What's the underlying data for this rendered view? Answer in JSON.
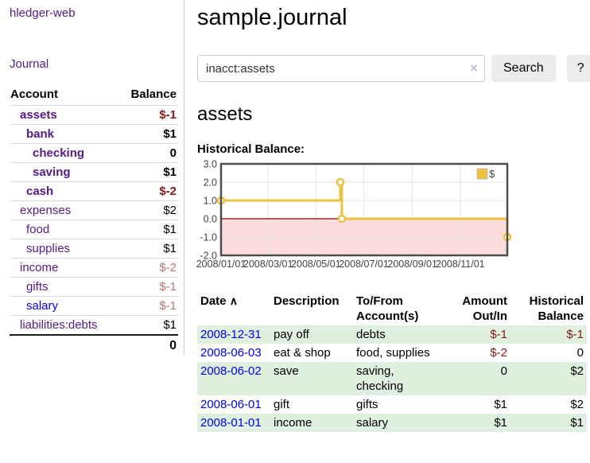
{
  "app": {
    "brand": "hledger-web",
    "nav_journal": "Journal"
  },
  "colors": {
    "purple_link": "#551a8b",
    "blue_link": "#0000ee",
    "negative_strong": "#8b1717",
    "negative_soft": "#bd7575",
    "stripe_green": "#dff0df",
    "series_yellow": "#edc240",
    "negative_region_pink": "#fcdcdc",
    "zero_line_red": "#8b0000",
    "chart_border_gray": "#4d4d4d"
  },
  "sidebar": {
    "table": {
      "col_account": "Account",
      "col_balance": "Balance"
    },
    "accounts": [
      {
        "name": "assets",
        "indent": 1,
        "bold": true,
        "balance": "$-1",
        "negative": "strong"
      },
      {
        "name": "bank",
        "indent": 2,
        "bold": true,
        "balance": "$1"
      },
      {
        "name": "checking",
        "indent": 3,
        "bold": true,
        "balance": "0"
      },
      {
        "name": "saving",
        "indent": 3,
        "bold": true,
        "balance": "$1"
      },
      {
        "name": "cash",
        "indent": 2,
        "bold": true,
        "balance": "$-2",
        "negative": "strong"
      },
      {
        "name": "expenses",
        "indent": 1,
        "bold": false,
        "balance": "$2"
      },
      {
        "name": "food",
        "indent": 2,
        "bold": false,
        "balance": "$1"
      },
      {
        "name": "supplies",
        "indent": 2,
        "bold": false,
        "balance": "$1"
      },
      {
        "name": "income",
        "indent": 1,
        "bold": false,
        "balance": "$-2",
        "negative": "soft"
      },
      {
        "name": "gifts",
        "indent": 2,
        "bold": false,
        "balance": "$-1",
        "negative": "soft"
      },
      {
        "name": "salary",
        "indent": 2,
        "bold": false,
        "balance": "$-1",
        "negative": "soft",
        "link_color": "blue"
      },
      {
        "name": "liabilities:debts",
        "indent": 1,
        "bold": false,
        "balance": "$1"
      }
    ],
    "total": "0"
  },
  "header": {
    "title": "sample.journal"
  },
  "search": {
    "value": "inacct:assets",
    "clear_icon": "×",
    "button": "Search",
    "help_button": "?"
  },
  "main": {
    "account_heading": "assets",
    "chart_label": "Historical Balance:"
  },
  "chart_data": {
    "type": "line",
    "title": "Historical Balance:",
    "step": true,
    "grid": true,
    "legend_position": "top-right",
    "legend": [
      {
        "label": "$"
      }
    ],
    "ylim": [
      -2,
      3
    ],
    "yticks": [
      {
        "value": 3,
        "label": "3.0"
      },
      {
        "value": 2,
        "label": "2.0"
      },
      {
        "value": 1,
        "label": "1.0"
      },
      {
        "value": 0,
        "label": "0.0"
      },
      {
        "value": -1,
        "label": "-1.0"
      },
      {
        "value": -2,
        "label": "-2.0"
      }
    ],
    "x_range": [
      0,
      365
    ],
    "xticks": [
      {
        "day": 0,
        "label": "2008/01/01"
      },
      {
        "day": 60,
        "label": "2008/03/01"
      },
      {
        "day": 121,
        "label": "2008/05/01"
      },
      {
        "day": 182,
        "label": "2008/07/01"
      },
      {
        "day": 244,
        "label": "2008/09/01"
      },
      {
        "day": 305,
        "label": "2008/11/01"
      }
    ],
    "series": [
      {
        "name": "$",
        "color": "#edc240",
        "points": [
          {
            "date": "2008/01/01",
            "day": 0,
            "value": 1
          },
          {
            "date": "2008/06/01",
            "day": 152,
            "value": 2
          },
          {
            "date": "2008/06/03",
            "day": 154,
            "value": 0
          },
          {
            "date": "2008/12/31",
            "day": 365,
            "value": -1
          }
        ]
      }
    ],
    "negative_region_color": "#fcdcdc",
    "zero_line_color": "#8b0000"
  },
  "register": {
    "headers": [
      "Date",
      "Description",
      "To/From Account(s)",
      "Amount Out/In",
      "Historical Balance"
    ],
    "sort_icon": "∧",
    "rows": [
      {
        "date": "2008-12-31",
        "description": "pay off",
        "accounts": "debts",
        "amount": "$-1",
        "amount_neg": true,
        "balance": "$-1",
        "balance_neg": true
      },
      {
        "date": "2008-06-03",
        "description": "eat & shop",
        "accounts": "food, supplies",
        "amount": "$-2",
        "amount_neg": true,
        "balance": "0",
        "balance_neg": false
      },
      {
        "date": "2008-06-02",
        "description": "save",
        "accounts": "saving,\nchecking",
        "amount": "0",
        "amount_neg": false,
        "balance": "$2",
        "balance_neg": false
      },
      {
        "date": "2008-06-01",
        "description": "gift",
        "accounts": "gifts",
        "amount": "$1",
        "amount_neg": false,
        "balance": "$2",
        "balance_neg": false
      },
      {
        "date": "2008-01-01",
        "description": "income",
        "accounts": "salary",
        "amount": "$1",
        "amount_neg": false,
        "balance": "$1",
        "balance_neg": false
      }
    ]
  }
}
